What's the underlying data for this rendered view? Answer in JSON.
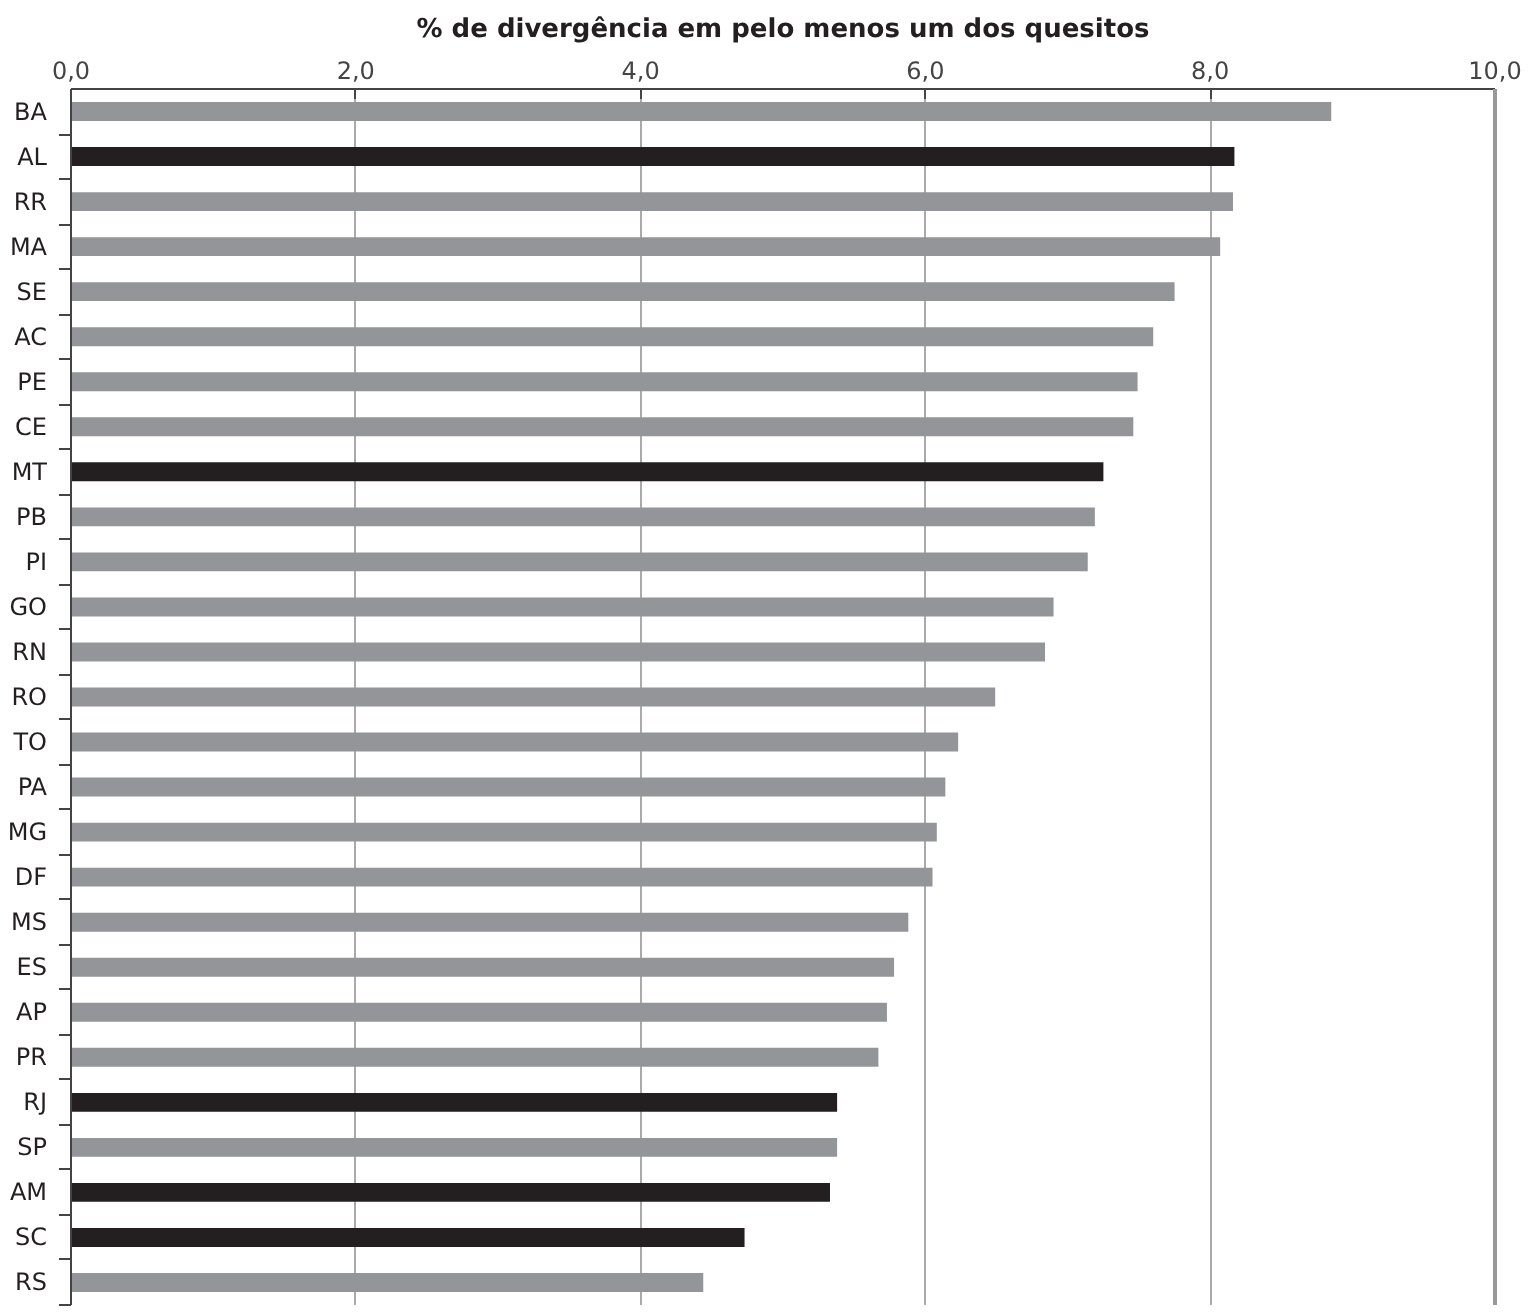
{
  "chart_data": {
    "type": "bar",
    "orientation": "horizontal",
    "title": "% de divergência em pelo menos um dos quesitos",
    "categories": [
      "BA",
      "AL",
      "RR",
      "MA",
      "SE",
      "AC",
      "PE",
      "CE",
      "MT",
      "PB",
      "PI",
      "GO",
      "RN",
      "RO",
      "TO",
      "PA",
      "MG",
      "DF",
      "MS",
      "ES",
      "AP",
      "PR",
      "RJ",
      "SP",
      "AM",
      "SC",
      "RS"
    ],
    "values": [
      8.85,
      8.17,
      8.16,
      8.07,
      7.75,
      7.6,
      7.49,
      7.46,
      7.25,
      7.19,
      7.14,
      6.9,
      6.84,
      6.49,
      6.23,
      6.14,
      6.08,
      6.05,
      5.88,
      5.78,
      5.73,
      5.67,
      5.38,
      5.38,
      5.33,
      4.73,
      4.44
    ],
    "colors": [
      "#939598",
      "#231f20",
      "#939598",
      "#939598",
      "#939598",
      "#939598",
      "#939598",
      "#939598",
      "#231f20",
      "#939598",
      "#939598",
      "#939598",
      "#939598",
      "#939598",
      "#939598",
      "#939598",
      "#939598",
      "#939598",
      "#939598",
      "#939598",
      "#939598",
      "#939598",
      "#231f20",
      "#939598",
      "#231f20",
      "#231f20",
      "#939598"
    ],
    "xlim": [
      0,
      10
    ],
    "xticks": [
      {
        "value": 0,
        "label": "0,0"
      },
      {
        "value": 2,
        "label": "2,0"
      },
      {
        "value": 4,
        "label": "4,0"
      },
      {
        "value": 6,
        "label": "6,0"
      },
      {
        "value": 8,
        "label": "8,0"
      },
      {
        "value": 10,
        "label": "10,0"
      }
    ],
    "grid": "x"
  }
}
